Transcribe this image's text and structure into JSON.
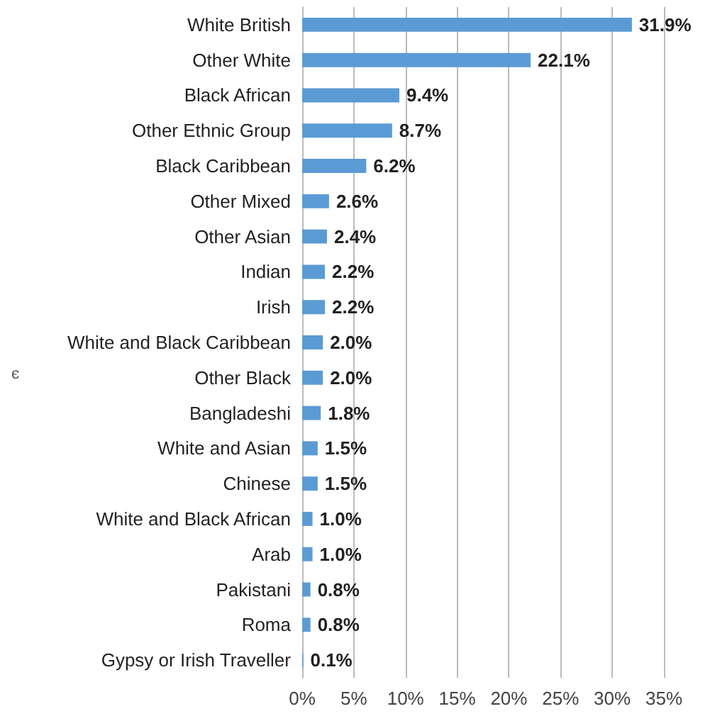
{
  "chart_data": {
    "type": "bar",
    "orientation": "horizontal",
    "categories": [
      "White British",
      "Other White",
      "Black African",
      "Other Ethnic Group",
      "Black Caribbean",
      "Other Mixed",
      "Other Asian",
      "Indian",
      "Irish",
      "White and Black Caribbean",
      "Other Black",
      "Bangladeshi",
      "White and Asian",
      "Chinese",
      "White and Black African",
      "Arab",
      "Pakistani",
      "Roma",
      "Gypsy or Irish Traveller"
    ],
    "values": [
      31.9,
      22.1,
      9.4,
      8.7,
      6.2,
      2.6,
      2.4,
      2.2,
      2.2,
      2.0,
      2.0,
      1.8,
      1.5,
      1.5,
      1.0,
      1.0,
      0.8,
      0.8,
      0.1
    ],
    "value_labels": [
      "31.9%",
      "22.1%",
      "9.4%",
      "8.7%",
      "6.2%",
      "2.6%",
      "2.4%",
      "2.2%",
      "2.2%",
      "2.0%",
      "2.0%",
      "1.8%",
      "1.5%",
      "1.5%",
      "1.0%",
      "1.0%",
      "0.8%",
      "0.8%",
      "0.1%"
    ],
    "color": "#5b9bd5",
    "xlim": [
      0,
      35
    ],
    "xticks": [
      {
        "value": 0,
        "label": "0%"
      },
      {
        "value": 5,
        "label": "5%"
      },
      {
        "value": 10,
        "label": "10%"
      },
      {
        "value": 15,
        "label": "15%"
      },
      {
        "value": 20,
        "label": "20%"
      },
      {
        "value": 25,
        "label": "25%"
      },
      {
        "value": 30,
        "label": "30%"
      },
      {
        "value": 35,
        "label": "35%"
      }
    ],
    "grid": "x",
    "annotations": [
      "є"
    ]
  }
}
